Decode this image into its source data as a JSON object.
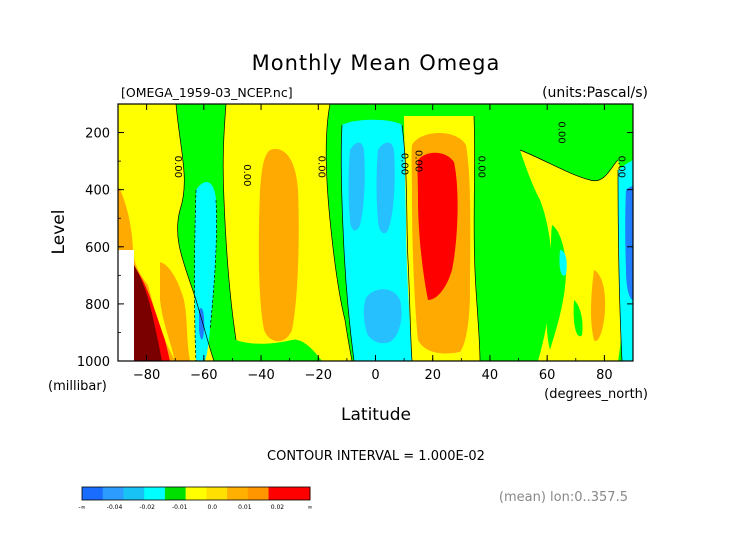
{
  "chart_data": {
    "type": "contour",
    "title": "Monthly Mean Omega",
    "file_label": "[OMEGA_1959-03_NCEP.nc]",
    "units_label": "(units:Pascal/s)",
    "xlabel": "Latitude",
    "ylabel": "Level",
    "x_units": "(degrees_north)",
    "y_units": "(millibar)",
    "xlim": [
      -90,
      90
    ],
    "ylim": [
      1000,
      100
    ],
    "x_ticks": [
      -80,
      -60,
      -40,
      -20,
      0,
      20,
      40,
      60,
      80
    ],
    "y_ticks": [
      200,
      400,
      600,
      800,
      1000
    ],
    "contour_interval_text": "CONTOUR INTERVAL = 1.000E-02",
    "note": "(mean) lon:0..357.5",
    "contour_labels": [
      {
        "text": "0.00",
        "x": -70,
        "y": 320
      },
      {
        "text": "0.00",
        "x": -46,
        "y": 350
      },
      {
        "text": "0.00",
        "x": -20,
        "y": 320
      },
      {
        "text": "0.00",
        "x": 9,
        "y": 310
      },
      {
        "text": "0.00",
        "x": 14,
        "y": 300
      },
      {
        "text": "0.00",
        "x": 36,
        "y": 320
      },
      {
        "text": "0.00",
        "x": 64,
        "y": 200
      },
      {
        "text": "0.00",
        "x": 85,
        "y": 320
      }
    ],
    "colorbar": {
      "colors": [
        "#1a6cff",
        "#2d9cff",
        "#19c2f5",
        "#00ffff",
        "#00e000",
        "#ffff00",
        "#ffe000",
        "#ffb000",
        "#ff9600",
        "#ff0000",
        "#ff0000"
      ],
      "labels": [
        "-∞",
        "-0.04",
        "-0.02",
        "-0.01",
        "0.0",
        "0.01",
        "0.02",
        "∞"
      ]
    },
    "fill_colors": {
      "green": "#00ff00",
      "yellow": "#ffff00",
      "orange": "#ffaa00",
      "red": "#ff0000",
      "cyan": "#00ffff",
      "light_blue": "#27c0ff",
      "blue": "#1f7bff",
      "dark_red": "#8b0000",
      "white": "#ffffff"
    }
  }
}
